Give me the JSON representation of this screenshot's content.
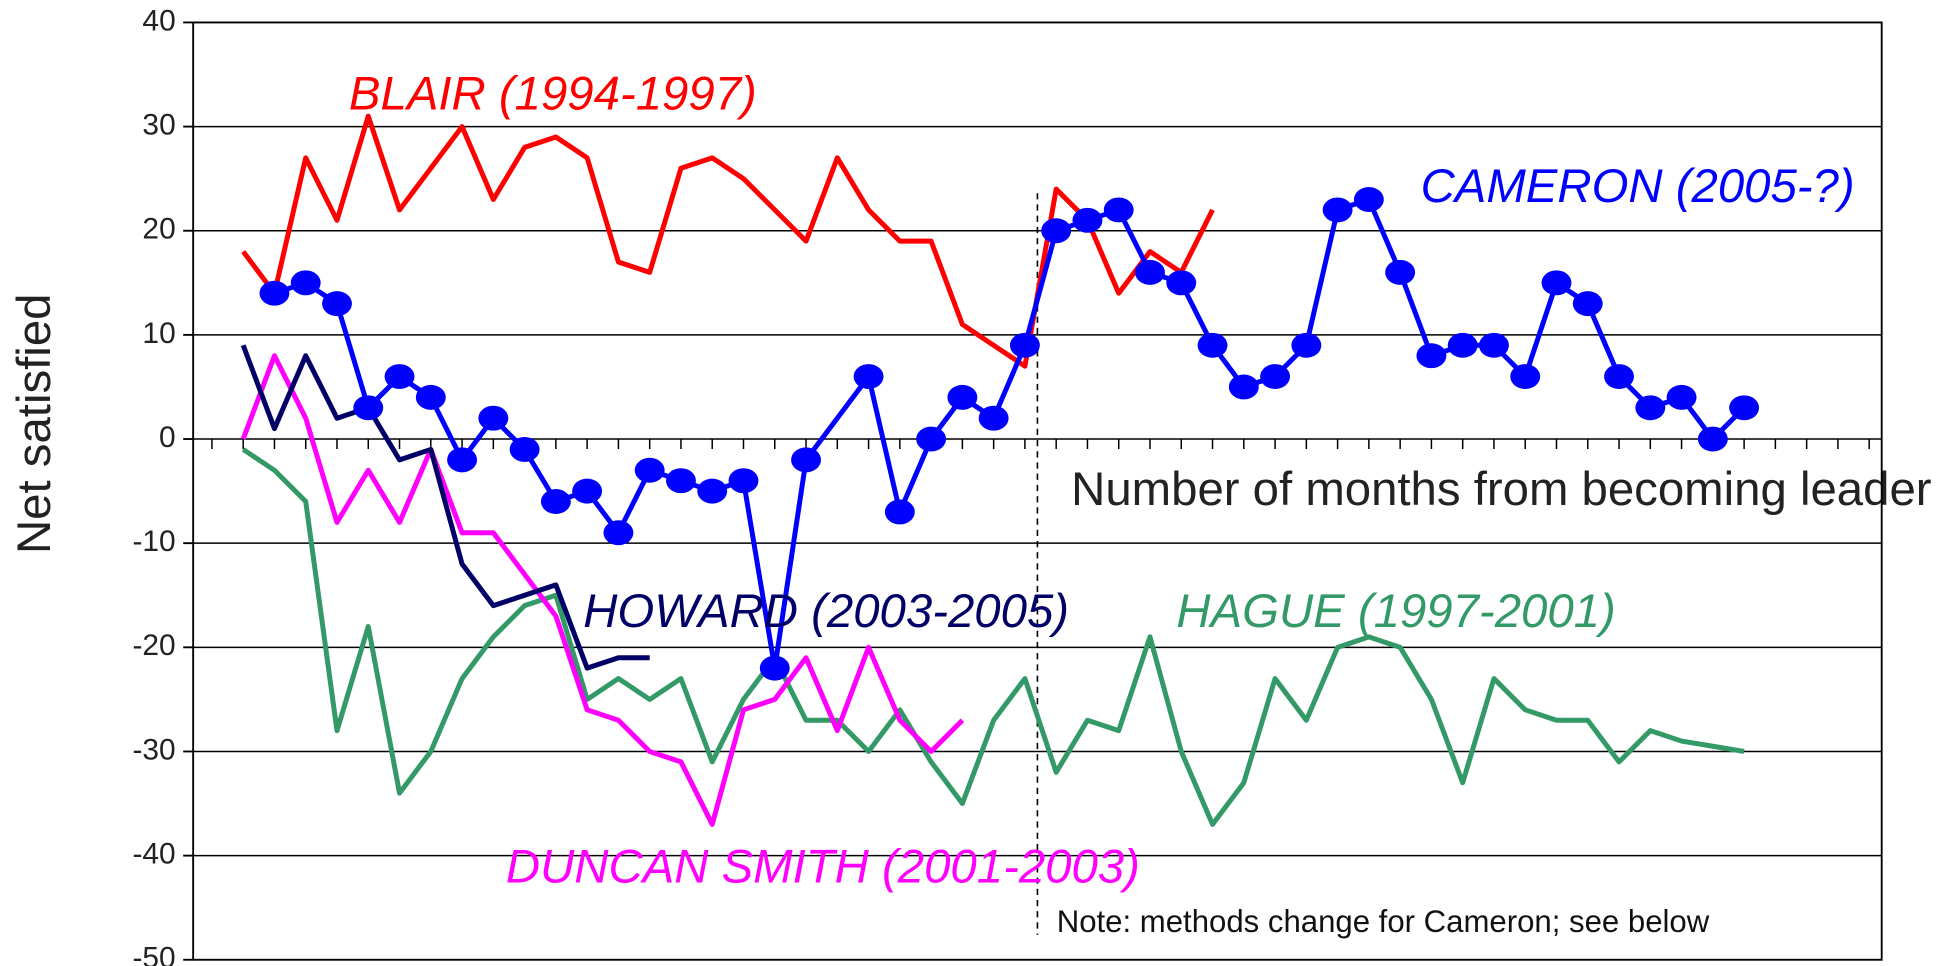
{
  "chart_data": {
    "type": "line",
    "y_label": "Net satisfied",
    "x_label": "Number of months from becoming leader",
    "annotation": "Note: methods change for Cameron; see below",
    "method_change_x": 25.4,
    "xlim": [
      -1.6,
      52.4
    ],
    "xticks": [
      -1,
      0,
      1,
      2,
      3,
      4,
      5,
      6,
      7,
      8,
      9,
      10,
      11,
      12,
      13,
      14,
      15,
      16,
      17,
      18,
      19,
      20,
      21,
      22,
      23,
      24,
      25,
      26,
      27,
      28,
      29,
      30,
      31,
      32,
      33,
      34,
      35,
      36,
      37,
      38,
      39,
      40,
      41,
      42,
      43,
      44,
      45,
      46,
      47,
      48,
      49,
      50,
      51,
      52
    ],
    "ylim": [
      -50,
      40
    ],
    "yticks": [
      -50,
      -40,
      -30,
      -20,
      -10,
      0,
      10,
      20,
      30,
      40
    ],
    "grid": true,
    "series": [
      {
        "name": "BLAIR (1994-1997)",
        "color": "#ff0000",
        "x": [
          0,
          1,
          2,
          3,
          4,
          5,
          6,
          7,
          8,
          9,
          10,
          11,
          12,
          13,
          14,
          15,
          16,
          17,
          18,
          19,
          20,
          21,
          22,
          23,
          24,
          25,
          26,
          27,
          28,
          29,
          30,
          31
        ],
        "values": [
          18,
          14,
          27,
          21,
          31,
          22,
          26,
          30,
          23,
          28,
          29,
          27,
          17,
          16,
          26,
          27,
          25,
          22,
          19,
          27,
          22,
          19,
          19,
          11,
          9,
          7,
          24,
          21,
          14,
          18,
          16,
          22
        ]
      },
      {
        "name": "CAMERON (2005-?)",
        "color": "#0000ff",
        "markers": true,
        "x": [
          1,
          2,
          3,
          4,
          5,
          6,
          7,
          8,
          9,
          10,
          11,
          12,
          13,
          14,
          15,
          16,
          17,
          18,
          20,
          21,
          22,
          23,
          24,
          25,
          26,
          27,
          28,
          29,
          30,
          31,
          32,
          33,
          34,
          35,
          36,
          37,
          38,
          39,
          40,
          41,
          42,
          43,
          44,
          45,
          46,
          47,
          48
        ],
        "values": [
          14,
          15,
          13,
          3,
          6,
          4,
          -2,
          2,
          -1,
          -6,
          -5,
          -9,
          -3,
          -4,
          -5,
          -4,
          -22,
          -2,
          6,
          -7,
          0,
          4,
          2,
          9,
          20,
          21,
          22,
          16,
          15,
          9,
          5,
          6,
          9,
          22,
          23,
          16,
          8,
          9,
          9,
          6,
          15,
          13,
          6,
          3,
          4,
          0,
          3
        ]
      },
      {
        "name": "HOWARD (2003-2005)",
        "color": "#000066",
        "x": [
          0,
          1,
          2,
          3,
          4,
          5,
          6,
          7,
          8,
          9,
          10,
          11,
          12,
          13
        ],
        "values": [
          9,
          1,
          8,
          2,
          3,
          -2,
          -1,
          -12,
          -16,
          -15,
          -14,
          -22,
          -21,
          -21
        ]
      },
      {
        "name": "DUNCAN SMITH (2001-2003)",
        "color": "#ff00ff",
        "x": [
          0,
          1,
          2,
          3,
          4,
          5,
          6,
          7,
          8,
          9,
          10,
          11,
          12,
          13,
          14,
          15,
          16,
          17,
          18,
          19,
          20,
          21,
          22,
          23
        ],
        "values": [
          0,
          8,
          2,
          -8,
          -3,
          -8,
          -1,
          -9,
          -9,
          -13,
          -17,
          -26,
          -27,
          -30,
          -31,
          -37,
          -26,
          -25,
          -21,
          -28,
          -20,
          -27,
          -30,
          -27
        ]
      },
      {
        "name": "HAGUE (1997-2001)",
        "color": "#339966",
        "x": [
          0,
          1,
          2,
          3,
          4,
          5,
          6,
          7,
          8,
          9,
          10,
          11,
          12,
          13,
          14,
          15,
          16,
          17,
          18,
          19,
          20,
          21,
          22,
          23,
          24,
          25,
          26,
          27,
          28,
          29,
          30,
          31,
          32,
          33,
          34,
          35,
          36,
          37,
          38,
          39,
          40,
          41,
          42,
          43,
          44,
          45,
          46,
          47,
          48
        ],
        "values": [
          -1,
          -3,
          -6,
          -28,
          -18,
          -34,
          -30,
          -23,
          -19,
          -16,
          -15,
          -25,
          -23,
          -25,
          -23,
          -31,
          -25,
          -21,
          -27,
          -27,
          -30,
          -26,
          -31,
          -35,
          -27,
          -23,
          -32,
          -27,
          -28,
          -19,
          -30,
          -37,
          -33,
          -23,
          -27,
          -20,
          -19,
          -20,
          -25,
          -33,
          -23,
          -26,
          -27,
          -27,
          -31,
          -28,
          -29,
          -29.5,
          -30
        ]
      }
    ]
  }
}
